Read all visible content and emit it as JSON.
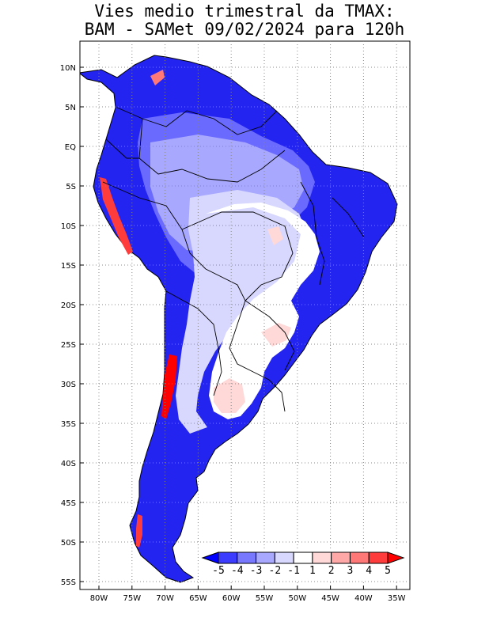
{
  "title": {
    "line1": "Vies medio trimestral da TMAX:",
    "line2": "BAM - SAMet 09/02/2024  para 120h"
  },
  "map": {
    "lat_ticks": [
      "10N",
      "5N",
      "EQ",
      "5S",
      "10S",
      "15S",
      "20S",
      "25S",
      "30S",
      "35S",
      "40S",
      "45S",
      "50S",
      "55S"
    ],
    "lon_ticks": [
      "80W",
      "75W",
      "70W",
      "65W",
      "60W",
      "55W",
      "50W",
      "45W",
      "40W",
      "35W"
    ],
    "grid": "dotted",
    "region": "South America"
  },
  "colorbar": {
    "labels": [
      "-5",
      "-4",
      "-3",
      "-2",
      "-1",
      "1",
      "2",
      "3",
      "4",
      "5"
    ],
    "colors": [
      "#0000ff",
      "#3c3cff",
      "#7878ff",
      "#a8a8ff",
      "#d8d8ff",
      "#ffffff",
      "#ffd8d8",
      "#ffa8a8",
      "#ff7878",
      "#ff3c3c",
      "#ff0000"
    ]
  }
}
